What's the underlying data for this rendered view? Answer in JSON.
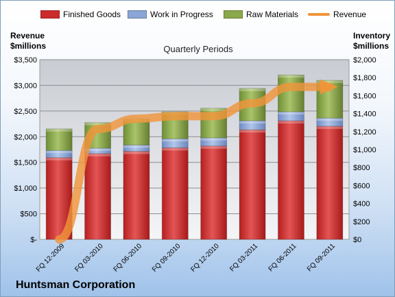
{
  "chart_data": {
    "type": "bar",
    "stacked": true,
    "subtitle": "Quarterly Periods",
    "company": "Huntsman Corporation",
    "ylabel_left": "Revenue $millions",
    "ylabel_right": "Inventory $millions",
    "categories": [
      "FQ 12-2009",
      "FQ 03-2010",
      "FQ 06-2010",
      "FQ 09-2010",
      "FQ 12-2010",
      "FQ 03-2011",
      "FQ 06-2011",
      "FQ 09-2011"
    ],
    "series": [
      {
        "name": "Finished Goods",
        "axis": "right",
        "color": "#cc2b2b",
        "values": [
          910,
          955,
          980,
          1020,
          1040,
          1220,
          1320,
          1260
        ]
      },
      {
        "name": "Work in Progress",
        "axis": "right",
        "color": "#8ba6d6",
        "values": [
          80,
          60,
          70,
          100,
          90,
          100,
          100,
          90
        ]
      },
      {
        "name": "Raw Materials",
        "axis": "right",
        "color": "#8aa94a",
        "values": [
          240,
          285,
          290,
          300,
          330,
          360,
          410,
          420
        ]
      },
      {
        "name": "Revenue",
        "axis": "left",
        "type": "line",
        "color": "#f0953a",
        "values": [
          0,
          2150,
          2350,
          2400,
          2400,
          2650,
          2970,
          2970
        ]
      }
    ],
    "y_left": {
      "min": 0,
      "max": 3500,
      "step": 500,
      "ticks": [
        "$-",
        "$500",
        "$1,000",
        "$1,500",
        "$2,000",
        "$2,500",
        "$3,000",
        "$3,500"
      ]
    },
    "y_right": {
      "min": 0,
      "max": 2000,
      "step": 200,
      "ticks": [
        "$0",
        "$200",
        "$400",
        "$600",
        "$800",
        "$1,000",
        "$1,200",
        "$1,400",
        "$1,600",
        "$1,800",
        "$2,000"
      ]
    },
    "grid": true,
    "legend_position": "top"
  }
}
